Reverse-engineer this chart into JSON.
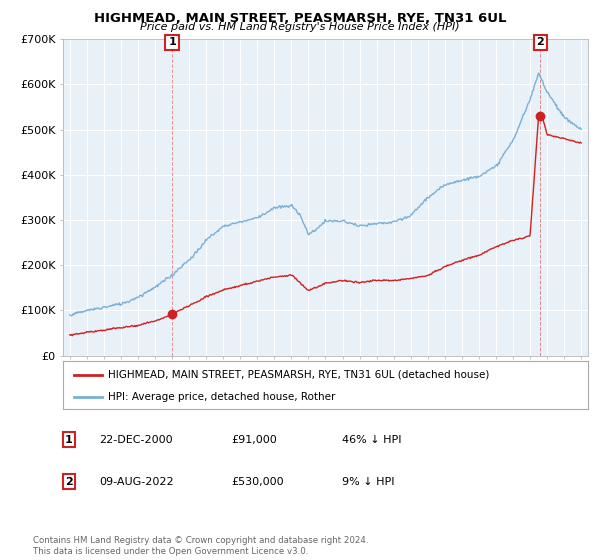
{
  "title": "HIGHMEAD, MAIN STREET, PEASMARSH, RYE, TN31 6UL",
  "subtitle": "Price paid vs. HM Land Registry's House Price Index (HPI)",
  "hpi_color": "#7ab0d4",
  "price_color": "#cc2222",
  "background_color": "#ffffff",
  "chart_bg_color": "#e8f0f8",
  "grid_color": "#ffffff",
  "ylim": [
    0,
    700000
  ],
  "yticks": [
    0,
    100000,
    200000,
    300000,
    400000,
    500000,
    600000,
    700000
  ],
  "ytick_labels": [
    "£0",
    "£100K",
    "£200K",
    "£300K",
    "£400K",
    "£500K",
    "£600K",
    "£700K"
  ],
  "xlim_start": 1994.6,
  "xlim_end": 2025.4,
  "sale1_year": 2001.0,
  "sale1_price": 91000,
  "sale2_year": 2022.6,
  "sale2_price": 530000,
  "legend_label1": "HIGHMEAD, MAIN STREET, PEASMARSH, RYE, TN31 6UL (detached house)",
  "legend_label2": "HPI: Average price, detached house, Rother",
  "annotation1_label": "1",
  "annotation1_date": "22-DEC-2000",
  "annotation1_price": "£91,000",
  "annotation1_hpi": "46% ↓ HPI",
  "annotation2_label": "2",
  "annotation2_date": "09-AUG-2022",
  "annotation2_price": "£530,000",
  "annotation2_hpi": "9% ↓ HPI",
  "footer": "Contains HM Land Registry data © Crown copyright and database right 2024.\nThis data is licensed under the Open Government Licence v3.0."
}
